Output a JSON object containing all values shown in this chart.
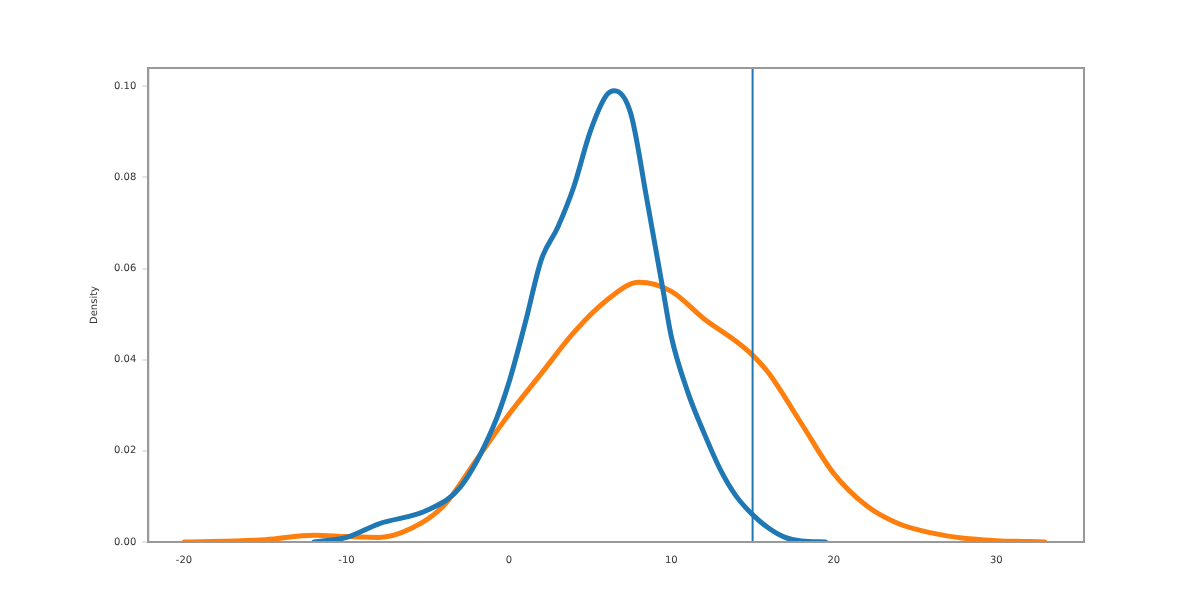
{
  "chart_data": {
    "type": "line",
    "ylabel": "Density",
    "xlim": [
      -22.2,
      35.4
    ],
    "xticks": [
      -20,
      -10,
      0,
      10,
      20,
      30
    ],
    "ylim": [
      0,
      0.104
    ],
    "yticks": [
      {
        "value": 0,
        "label": "0.00"
      },
      {
        "value": 0.02,
        "label": "0.02"
      },
      {
        "value": 0.04,
        "label": "0.04"
      },
      {
        "value": 0.06,
        "label": "0.06"
      },
      {
        "value": 0.08,
        "label": "0.08"
      },
      {
        "value": 0.1,
        "label": "0.10"
      }
    ],
    "grid": false,
    "legend": false,
    "marker": "none",
    "line_style": "solid",
    "series": [
      {
        "color": "#1f77b4",
        "x": [
          -12,
          -10,
          -8,
          -5,
          -3,
          -1,
          0,
          1,
          2,
          3,
          4,
          5,
          6,
          6.5,
          7.5,
          8.5,
          9.5,
          10,
          11,
          12,
          13,
          14,
          15,
          16,
          17,
          18,
          19.5
        ],
        "values": [
          0,
          0.001,
          0.004,
          0.007,
          0.012,
          0.025,
          0.035,
          0.048,
          0.062,
          0.069,
          0.078,
          0.09,
          0.098,
          0.099,
          0.094,
          0.075,
          0.055,
          0.045,
          0.033,
          0.024,
          0.016,
          0.01,
          0.006,
          0.003,
          0.001,
          0.0002,
          0
        ]
      },
      {
        "color": "#ff7f0e",
        "x": [
          -20,
          -15,
          -12,
          -10,
          -8,
          -6,
          -4,
          -2,
          0,
          2,
          4,
          6,
          8,
          10,
          12,
          14,
          15,
          16,
          18,
          20,
          22,
          24,
          26,
          28,
          30,
          33
        ],
        "values": [
          0,
          0.0005,
          0.0015,
          0.0012,
          0.001,
          0.003,
          0.008,
          0.018,
          0.028,
          0.037,
          0.046,
          0.053,
          0.057,
          0.055,
          0.049,
          0.044,
          0.041,
          0.037,
          0.026,
          0.015,
          0.008,
          0.004,
          0.002,
          0.0008,
          0.0003,
          0
        ]
      }
    ],
    "ref_lines": [
      {
        "axis": "x",
        "value": 15,
        "color": "#1f77b4"
      }
    ]
  }
}
